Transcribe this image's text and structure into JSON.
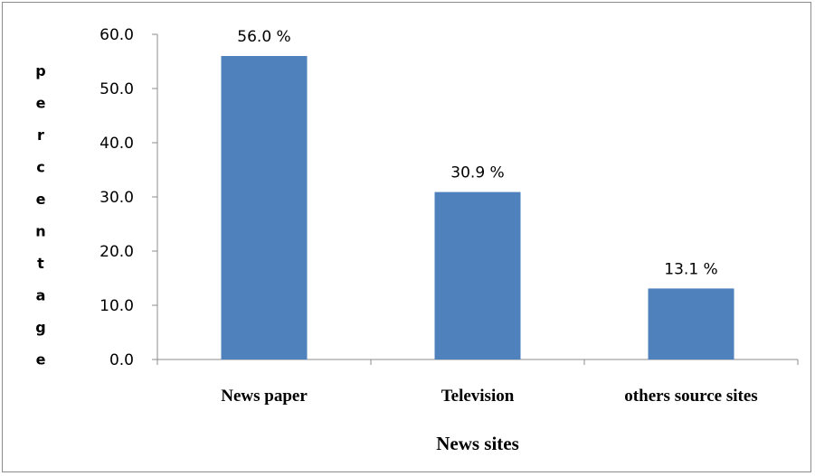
{
  "chart_data": {
    "type": "bar",
    "categories": [
      "News paper",
      "Television",
      "others source sites"
    ],
    "values": [
      56.0,
      30.9,
      13.1
    ],
    "data_labels": [
      "56.0 %",
      "30.9 %",
      "13.1 %"
    ],
    "xlabel": "News sites",
    "ylabel": "percentage",
    "ylim": [
      0,
      60
    ],
    "y_ticks": [
      "0.0",
      "10.0",
      "20.0",
      "30.0",
      "40.0",
      "50.0",
      "60.0"
    ],
    "grid": false,
    "legend": "none",
    "bar_color": "#4f81bd"
  }
}
